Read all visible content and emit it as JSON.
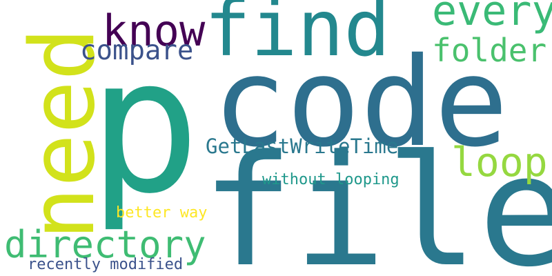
{
  "words": {
    "p": {
      "text": "p",
      "color": "#21a187"
    },
    "code": {
      "text": "code",
      "color": "#2e6f8e"
    },
    "file": {
      "text": "file",
      "color": "#2a788e"
    },
    "need": {
      "text": "need",
      "color": "#d2e21b"
    },
    "find": {
      "text": "find",
      "color": "#23888e"
    },
    "know": {
      "text": "know",
      "color": "#440154"
    },
    "every": {
      "text": "every",
      "color": "#3aba76"
    },
    "compare": {
      "text": "compare",
      "color": "#3b528b"
    },
    "folder": {
      "text": "folder",
      "color": "#4ac16d"
    },
    "loop": {
      "text": "loop",
      "color": "#95d840"
    },
    "getlastwritetime": {
      "text": "GetLastWriteTime",
      "color": "#2a788e"
    },
    "without_looping": {
      "text": "without looping",
      "color": "#1f988b"
    },
    "better_way": {
      "text": "better way",
      "color": "#fde725"
    },
    "directory": {
      "text": "directory",
      "color": "#3fbc73"
    },
    "recently_modified": {
      "text": "recently modified",
      "color": "#3b528b"
    }
  }
}
